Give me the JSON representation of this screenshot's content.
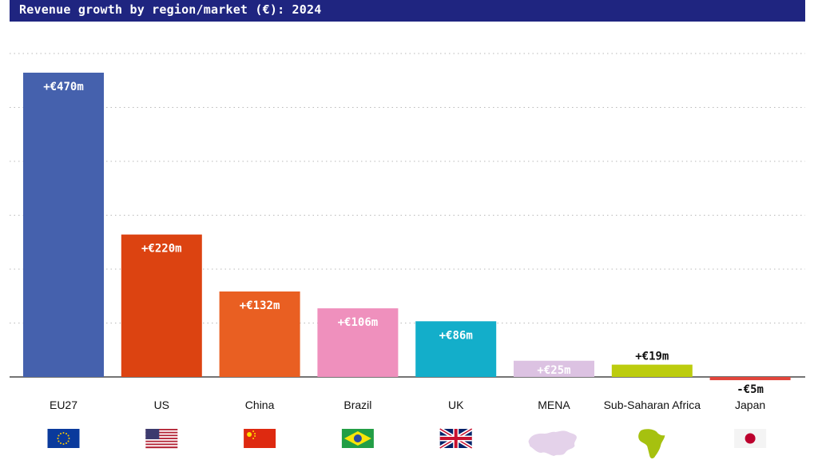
{
  "title": "Revenue growth by region/market (€): 2024",
  "chart_data": {
    "type": "bar",
    "title": "Revenue growth by region/market (€): 2024",
    "xlabel": "",
    "ylabel": "",
    "ylim": [
      -10,
      560
    ],
    "grid": true,
    "categories": [
      "EU27",
      "US",
      "China",
      "Brazil",
      "UK",
      "MENA",
      "Sub-Saharan Africa",
      "Japan"
    ],
    "values": [
      470,
      220,
      132,
      106,
      86,
      25,
      19,
      -5
    ],
    "data_labels": [
      "+€470m",
      "+€220m",
      "+€132m",
      "+€106m",
      "+€86m",
      "+€25m",
      "+€19m",
      "-€5m"
    ],
    "bar_colors": [
      "#4561ad",
      "#dc4311",
      "#e95f22",
      "#ef90bd",
      "#13aeca",
      "#dcc2e2",
      "#bccc0e",
      "#e2453b"
    ],
    "label_colors": [
      "#ffffff",
      "#ffffff",
      "#ffffff",
      "#ffffff",
      "#ffffff",
      "#ffffff",
      "#111111",
      "#111111"
    ],
    "icons": [
      "eu-flag-icon",
      "us-flag-icon",
      "china-flag-icon",
      "brazil-flag-icon",
      "uk-flag-icon",
      "mena-map-icon",
      "africa-map-icon",
      "japan-flag-icon"
    ]
  }
}
